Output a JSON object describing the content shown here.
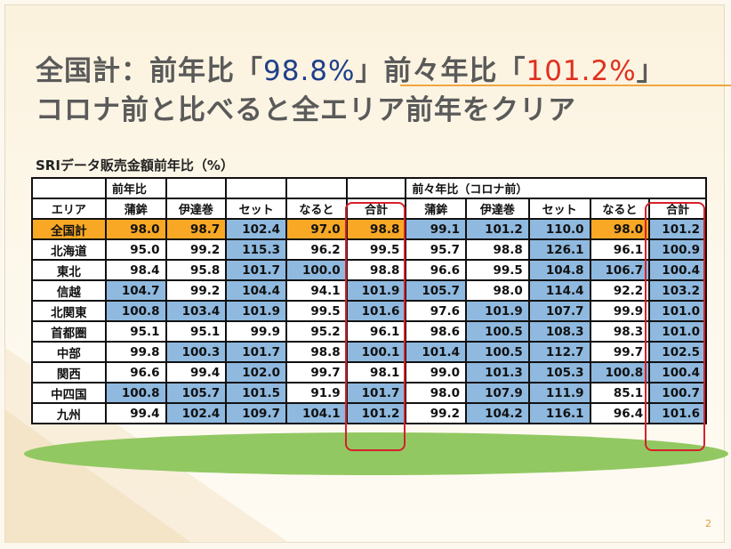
{
  "title": {
    "line1_prefix": "全国計：前年比「",
    "line1_value1": "98.8%",
    "line1_mid": "」前々年比「",
    "line1_value2": "101.2%",
    "line1_suffix": "」",
    "line2": "コロナ前と比べると全エリア前年をクリア"
  },
  "subtitle": "SRIデータ販売金額前年比（%）",
  "table": {
    "group_headers": [
      "前年比",
      "前々年比（コロナ前）"
    ],
    "columns": [
      "エリア",
      "蒲鉾",
      "伊達巻",
      "セット",
      "なると",
      "合計",
      "蒲鉾",
      "伊達巻",
      "セット",
      "なると",
      "合計"
    ],
    "rows": [
      {
        "area": "全国計",
        "values": [
          "98.0",
          "98.7",
          "102.4",
          "97.0",
          "98.8",
          "99.1",
          "101.2",
          "110.0",
          "98.0",
          "101.2"
        ]
      },
      {
        "area": "北海道",
        "values": [
          "95.0",
          "99.2",
          "115.3",
          "96.2",
          "99.5",
          "95.7",
          "98.8",
          "126.1",
          "96.1",
          "100.9"
        ]
      },
      {
        "area": "東北",
        "values": [
          "98.4",
          "95.8",
          "101.7",
          "100.0",
          "98.8",
          "96.6",
          "99.5",
          "104.8",
          "106.7",
          "100.4"
        ]
      },
      {
        "area": "信越",
        "values": [
          "104.7",
          "99.2",
          "104.4",
          "94.1",
          "101.9",
          "105.7",
          "98.0",
          "114.4",
          "92.2",
          "103.2"
        ]
      },
      {
        "area": "北関東",
        "values": [
          "100.8",
          "103.4",
          "101.9",
          "99.5",
          "101.6",
          "97.6",
          "101.9",
          "107.7",
          "99.9",
          "101.0"
        ]
      },
      {
        "area": "首都圏",
        "values": [
          "95.1",
          "95.1",
          "99.9",
          "95.2",
          "96.1",
          "98.6",
          "100.5",
          "108.3",
          "98.3",
          "101.0"
        ]
      },
      {
        "area": "中部",
        "values": [
          "99.8",
          "100.3",
          "101.7",
          "98.8",
          "100.1",
          "101.4",
          "100.5",
          "112.7",
          "99.7",
          "102.5"
        ]
      },
      {
        "area": "関西",
        "values": [
          "96.6",
          "99.4",
          "102.0",
          "99.7",
          "98.1",
          "99.0",
          "101.3",
          "105.3",
          "100.8",
          "100.4"
        ]
      },
      {
        "area": "中四国",
        "values": [
          "100.8",
          "105.7",
          "101.5",
          "91.9",
          "101.7",
          "98.0",
          "107.9",
          "111.9",
          "85.1",
          "100.7"
        ]
      },
      {
        "area": "九州",
        "values": [
          "99.4",
          "102.4",
          "109.7",
          "104.1",
          "101.2",
          "99.2",
          "104.2",
          "116.1",
          "96.4",
          "101.6"
        ]
      }
    ]
  },
  "colors": {
    "highlight_blue": "#8fb9df",
    "highlight_orange": "#f8a824",
    "red_outline": "#d6202a",
    "title_gray": "#5a5a5a",
    "value_blue": "#1f3f8a",
    "value_red": "#e0301e"
  },
  "page_number": "2"
}
